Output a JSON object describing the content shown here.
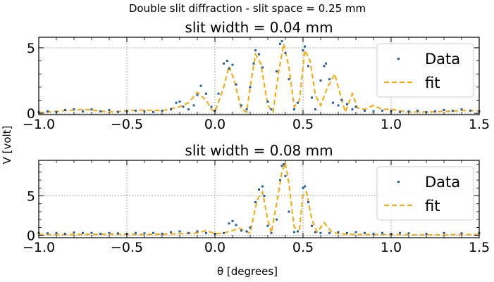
{
  "figure": {
    "suptitle": "Double slit diffraction - slit space = 0.25 mm",
    "xlabel": "θ [degrees]",
    "ylabel": "V [volt]"
  },
  "colors": {
    "data": "#1f62a5",
    "fit": "#ffa500",
    "grid": "#888888",
    "axis": "#000000"
  },
  "chart_data": [
    {
      "type": "scatter",
      "title": "slit width = 0.04 mm",
      "xlim": [
        -1.0,
        1.5
      ],
      "ylim": [
        -0.1,
        5.8
      ],
      "xticks": [
        -1.0,
        -0.5,
        0.0,
        0.5,
        1.0,
        1.5
      ],
      "xtick_labels": [
        "−1.0",
        "−0.5",
        "0.0",
        "0.5",
        "1.0",
        "1.5"
      ],
      "yticks": [
        0,
        5
      ],
      "ytick_labels": [
        "0",
        "5"
      ],
      "grid": true,
      "legend_position": "upper-right",
      "series": [
        {
          "name": "Data",
          "kind": "points",
          "x": [
            -1.0,
            -0.95,
            -0.9,
            -0.85,
            -0.8,
            -0.75,
            -0.7,
            -0.65,
            -0.6,
            -0.55,
            -0.5,
            -0.45,
            -0.4,
            -0.35,
            -0.3,
            -0.25,
            -0.22,
            -0.2,
            -0.18,
            -0.15,
            -0.12,
            -0.1,
            -0.08,
            -0.05,
            -0.02,
            0.0,
            0.02,
            0.05,
            0.07,
            0.08,
            0.1,
            0.12,
            0.15,
            0.18,
            0.2,
            0.22,
            0.23,
            0.25,
            0.27,
            0.3,
            0.32,
            0.35,
            0.37,
            0.38,
            0.4,
            0.42,
            0.45,
            0.47,
            0.5,
            0.51,
            0.53,
            0.55,
            0.57,
            0.6,
            0.62,
            0.63,
            0.65,
            0.67,
            0.7,
            0.72,
            0.75,
            0.78,
            0.8,
            0.85,
            0.9,
            0.95,
            1.0,
            1.05,
            1.1,
            1.15,
            1.2,
            1.25,
            1.3,
            1.35,
            1.4,
            1.45,
            1.5
          ],
          "y": [
            0.1,
            0.15,
            0.1,
            0.25,
            0.3,
            0.15,
            0.3,
            0.15,
            0.25,
            0.1,
            0.15,
            0.2,
            0.15,
            0.1,
            0.2,
            0.3,
            0.8,
            0.9,
            0.5,
            0.3,
            0.6,
            1.4,
            2.1,
            1.5,
            0.5,
            0.2,
            1.5,
            3.8,
            4.0,
            3.4,
            3.7,
            2.2,
            0.6,
            0.3,
            2.0,
            3.8,
            4.8,
            4.5,
            3.5,
            0.9,
            0.3,
            3.2,
            5.3,
            5.5,
            4.6,
            2.6,
            0.3,
            0.8,
            4.8,
            5.1,
            3.6,
            1.2,
            0.3,
            2.5,
            3.6,
            3.8,
            2.6,
            0.8,
            0.6,
            1.0,
            0.7,
            0.3,
            0.5,
            0.2,
            0.15,
            0.2,
            0.15,
            0.1,
            0.15,
            0.2,
            0.1,
            0.15,
            0.25,
            0.2,
            0.3,
            0.2,
            0.15
          ]
        },
        {
          "name": "fit",
          "kind": "dashed-line",
          "x": [
            -1.0,
            -0.9,
            -0.8,
            -0.75,
            -0.7,
            -0.6,
            -0.5,
            -0.4,
            -0.3,
            -0.2,
            -0.15,
            -0.1,
            -0.05,
            -0.02,
            0.0,
            0.05,
            0.08,
            0.11,
            0.15,
            0.18,
            0.2,
            0.23,
            0.26,
            0.3,
            0.33,
            0.36,
            0.39,
            0.42,
            0.45,
            0.48,
            0.51,
            0.54,
            0.57,
            0.6,
            0.64,
            0.68,
            0.71,
            0.74,
            0.78,
            0.81,
            0.85,
            0.9,
            0.95,
            1.0,
            1.05,
            1.1,
            1.2,
            1.3,
            1.4,
            1.5
          ],
          "y": [
            0.05,
            0.15,
            0.25,
            0.3,
            0.25,
            0.1,
            0.2,
            0.25,
            0.2,
            0.5,
            0.8,
            1.6,
            1.0,
            0.3,
            0.1,
            2.0,
            3.6,
            2.5,
            0.3,
            0.1,
            2.0,
            4.5,
            3.8,
            0.6,
            0.1,
            3.0,
            5.3,
            3.5,
            0.5,
            1.0,
            4.8,
            4.0,
            1.4,
            0.6,
            2.0,
            3.0,
            1.5,
            0.1,
            1.5,
            0.4,
            0.3,
            0.6,
            0.3,
            0.3,
            0.2,
            0.1,
            0.1,
            0.15,
            0.2,
            0.2
          ]
        }
      ]
    },
    {
      "type": "scatter",
      "title": "slit width = 0.08 mm",
      "xlim": [
        -1.0,
        1.5
      ],
      "ylim": [
        -0.3,
        9.5
      ],
      "xticks": [
        -1.0,
        -0.5,
        0.0,
        0.5,
        1.0,
        1.5
      ],
      "xtick_labels": [
        "−1.0",
        "−0.5",
        "0.0",
        "0.5",
        "1.0",
        "1.5"
      ],
      "yticks": [
        0,
        5
      ],
      "ytick_labels": [
        "0",
        "5"
      ],
      "grid": true,
      "legend_position": "upper-right",
      "series": [
        {
          "name": "Data",
          "kind": "points",
          "x": [
            -1.0,
            -0.95,
            -0.9,
            -0.85,
            -0.8,
            -0.75,
            -0.7,
            -0.65,
            -0.6,
            -0.55,
            -0.5,
            -0.45,
            -0.4,
            -0.35,
            -0.3,
            -0.25,
            -0.2,
            -0.15,
            -0.1,
            -0.05,
            0.0,
            0.05,
            0.08,
            0.1,
            0.12,
            0.15,
            0.18,
            0.2,
            0.23,
            0.25,
            0.27,
            0.28,
            0.3,
            0.32,
            0.35,
            0.37,
            0.38,
            0.39,
            0.4,
            0.42,
            0.45,
            0.47,
            0.5,
            0.51,
            0.53,
            0.55,
            0.57,
            0.6,
            0.65,
            0.7,
            0.75,
            0.8,
            0.85,
            0.9,
            0.95,
            1.0,
            1.05,
            1.1,
            1.2,
            1.3,
            1.4,
            1.5
          ],
          "y": [
            0.3,
            0.25,
            0.3,
            0.2,
            0.35,
            0.3,
            0.3,
            0.2,
            0.3,
            0.25,
            0.2,
            0.3,
            0.25,
            0.3,
            0.2,
            0.4,
            0.5,
            0.3,
            0.5,
            0.3,
            0.2,
            0.3,
            1.5,
            1.8,
            1.3,
            0.6,
            0.5,
            1.0,
            4.2,
            5.8,
            6.2,
            5.0,
            1.2,
            0.3,
            2.0,
            7.0,
            8.8,
            9.0,
            7.5,
            3.0,
            0.4,
            0.5,
            6.0,
            6.2,
            4.2,
            1.2,
            0.4,
            0.3,
            0.3,
            0.4,
            0.3,
            0.4,
            0.3,
            0.2,
            0.3,
            0.2,
            0.3,
            0.25,
            0.2,
            0.3,
            0.25,
            0.3
          ]
        },
        {
          "name": "fit",
          "kind": "dashed-line",
          "x": [
            -1.0,
            -0.8,
            -0.6,
            -0.4,
            -0.2,
            -0.1,
            -0.05,
            0.0,
            0.05,
            0.1,
            0.14,
            0.17,
            0.2,
            0.22,
            0.24,
            0.27,
            0.3,
            0.32,
            0.35,
            0.38,
            0.4,
            0.42,
            0.45,
            0.48,
            0.5,
            0.52,
            0.55,
            0.58,
            0.62,
            0.66,
            0.7,
            0.8,
            0.9,
            1.0,
            1.2,
            1.4,
            1.5
          ],
          "y": [
            0.1,
            0.1,
            0.15,
            0.1,
            0.2,
            0.3,
            0.6,
            0.2,
            0.3,
            0.6,
            0.9,
            0.5,
            0.3,
            2.5,
            4.5,
            5.5,
            2.0,
            0.3,
            4.0,
            8.0,
            9.2,
            6.5,
            1.0,
            0.8,
            5.2,
            5.5,
            2.0,
            0.4,
            1.6,
            0.5,
            0.2,
            0.1,
            0.1,
            0.1,
            0.05,
            0.1,
            0.1
          ]
        }
      ]
    }
  ]
}
